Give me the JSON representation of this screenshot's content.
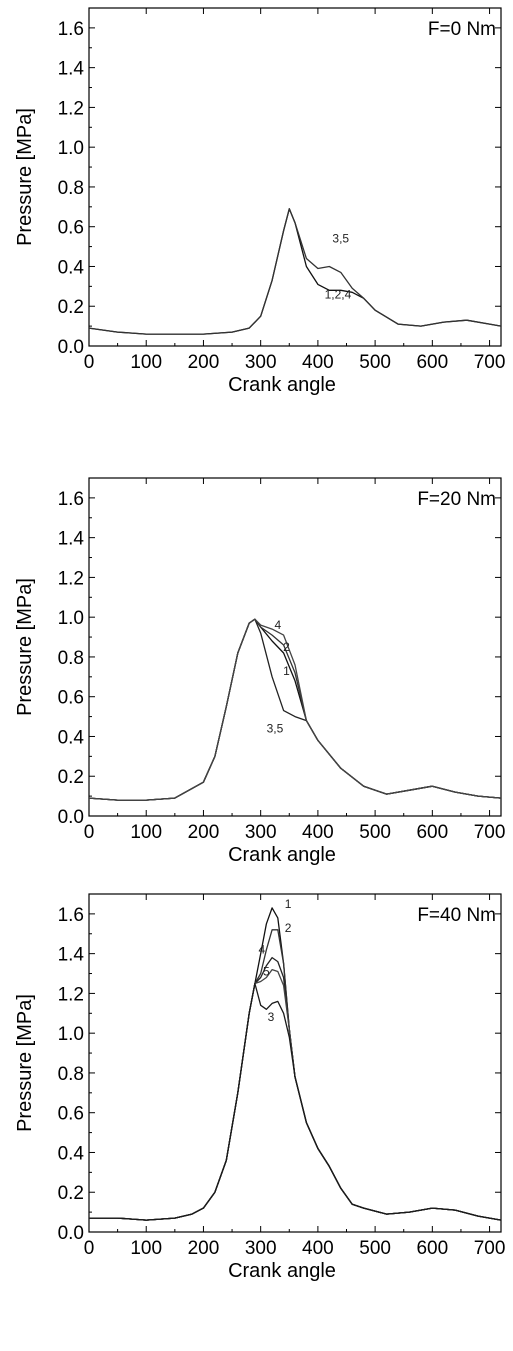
{
  "chart_data": [
    {
      "type": "line",
      "title": "F=0 Nm",
      "xlabel": "Crank angle",
      "ylabel": "Pressure [MPa]",
      "xlim": [
        0,
        720
      ],
      "ylim": [
        0.0,
        1.7
      ],
      "xticks": [
        "0",
        "100",
        "200",
        "300",
        "400",
        "500",
        "600",
        "700"
      ],
      "yticks": [
        "0.0",
        "0.2",
        "0.4",
        "0.6",
        "0.8",
        "1.0",
        "1.2",
        "1.4",
        "1.6"
      ],
      "grid": false,
      "series": [
        {
          "name": "1,2,4",
          "x": [
            0,
            50,
            100,
            150,
            200,
            250,
            280,
            300,
            320,
            340,
            350,
            360,
            380,
            400,
            420,
            440,
            460,
            480,
            500,
            540,
            580,
            620,
            660,
            700,
            720
          ],
          "y": [
            0.09,
            0.07,
            0.06,
            0.06,
            0.06,
            0.07,
            0.09,
            0.15,
            0.33,
            0.58,
            0.69,
            0.62,
            0.4,
            0.31,
            0.28,
            0.28,
            0.27,
            0.24,
            0.18,
            0.11,
            0.1,
            0.12,
            0.13,
            0.11,
            0.1
          ]
        },
        {
          "name": "3,5",
          "x": [
            0,
            50,
            100,
            150,
            200,
            250,
            280,
            300,
            320,
            340,
            350,
            360,
            380,
            400,
            420,
            440,
            460,
            480,
            500,
            540,
            580,
            620,
            660,
            700,
            720
          ],
          "y": [
            0.09,
            0.07,
            0.06,
            0.06,
            0.06,
            0.07,
            0.09,
            0.15,
            0.33,
            0.58,
            0.69,
            0.62,
            0.44,
            0.39,
            0.4,
            0.37,
            0.29,
            0.24,
            0.18,
            0.11,
            0.1,
            0.12,
            0.13,
            0.11,
            0.1
          ]
        }
      ],
      "annotations": [
        {
          "text": "3,5",
          "x": 440,
          "y": 0.52
        },
        {
          "text": "1,2,4",
          "x": 435,
          "y": 0.24
        }
      ]
    },
    {
      "type": "line",
      "title": "F=20 Nm",
      "xlabel": "Crank angle",
      "ylabel": "Pressure [MPa]",
      "xlim": [
        0,
        720
      ],
      "ylim": [
        0.0,
        1.7
      ],
      "xticks": [
        "0",
        "100",
        "200",
        "300",
        "400",
        "500",
        "600",
        "700"
      ],
      "yticks": [
        "0.0",
        "0.2",
        "0.4",
        "0.6",
        "0.8",
        "1.0",
        "1.2",
        "1.4",
        "1.6"
      ],
      "grid": false,
      "series": [
        {
          "name": "1",
          "x": [
            0,
            50,
            100,
            150,
            200,
            220,
            240,
            260,
            280,
            290,
            300,
            320,
            340,
            360,
            380,
            400,
            440,
            480,
            520,
            560,
            600,
            640,
            680,
            720
          ],
          "y": [
            0.09,
            0.08,
            0.08,
            0.09,
            0.17,
            0.3,
            0.55,
            0.82,
            0.97,
            0.99,
            0.95,
            0.88,
            0.82,
            0.68,
            0.48,
            0.38,
            0.24,
            0.15,
            0.11,
            0.13,
            0.15,
            0.12,
            0.1,
            0.09
          ]
        },
        {
          "name": "2",
          "x": [
            0,
            50,
            100,
            150,
            200,
            220,
            240,
            260,
            280,
            290,
            300,
            320,
            340,
            360,
            380,
            400,
            440,
            480,
            520,
            560,
            600,
            640,
            680,
            720
          ],
          "y": [
            0.09,
            0.08,
            0.08,
            0.09,
            0.17,
            0.3,
            0.55,
            0.82,
            0.97,
            0.99,
            0.95,
            0.91,
            0.86,
            0.72,
            0.48,
            0.38,
            0.24,
            0.15,
            0.11,
            0.13,
            0.15,
            0.12,
            0.1,
            0.09
          ]
        },
        {
          "name": "3,5",
          "x": [
            0,
            50,
            100,
            150,
            200,
            220,
            240,
            260,
            280,
            290,
            300,
            320,
            340,
            360,
            380,
            400,
            440,
            480,
            520,
            560,
            600,
            640,
            680,
            720
          ],
          "y": [
            0.09,
            0.08,
            0.08,
            0.09,
            0.17,
            0.3,
            0.55,
            0.82,
            0.97,
            0.99,
            0.92,
            0.7,
            0.53,
            0.5,
            0.48,
            0.38,
            0.24,
            0.15,
            0.11,
            0.13,
            0.15,
            0.12,
            0.1,
            0.09
          ]
        },
        {
          "name": "4",
          "x": [
            0,
            50,
            100,
            150,
            200,
            220,
            240,
            260,
            280,
            290,
            300,
            320,
            340,
            360,
            380,
            400,
            440,
            480,
            520,
            560,
            600,
            640,
            680,
            720
          ],
          "y": [
            0.09,
            0.08,
            0.08,
            0.09,
            0.17,
            0.3,
            0.55,
            0.82,
            0.97,
            0.99,
            0.96,
            0.94,
            0.91,
            0.76,
            0.48,
            0.38,
            0.24,
            0.15,
            0.11,
            0.13,
            0.15,
            0.12,
            0.1,
            0.09
          ]
        }
      ],
      "annotations": [
        {
          "text": "4",
          "x": 330,
          "y": 0.94
        },
        {
          "text": "2",
          "x": 345,
          "y": 0.83
        },
        {
          "text": "1",
          "x": 345,
          "y": 0.71
        },
        {
          "text": "3,5",
          "x": 325,
          "y": 0.42
        }
      ]
    },
    {
      "type": "line",
      "title": "F=40 Nm",
      "xlabel": "Crank angle",
      "ylabel": "Pressure [MPa]",
      "xlim": [
        0,
        720
      ],
      "ylim": [
        0.0,
        1.7
      ],
      "xticks": [
        "0",
        "100",
        "200",
        "300",
        "400",
        "500",
        "600",
        "700"
      ],
      "yticks": [
        "0.0",
        "0.2",
        "0.4",
        "0.6",
        "0.8",
        "1.0",
        "1.2",
        "1.4",
        "1.6"
      ],
      "grid": false,
      "series": [
        {
          "name": "1",
          "x": [
            0,
            50,
            100,
            150,
            180,
            200,
            220,
            240,
            260,
            280,
            290,
            300,
            310,
            320,
            330,
            340,
            350,
            360,
            380,
            400,
            420,
            440,
            460,
            480,
            520,
            560,
            600,
            640,
            680,
            720
          ],
          "y": [
            0.07,
            0.07,
            0.06,
            0.07,
            0.09,
            0.12,
            0.2,
            0.36,
            0.7,
            1.1,
            1.25,
            1.4,
            1.55,
            1.63,
            1.58,
            1.35,
            1.02,
            0.78,
            0.55,
            0.42,
            0.33,
            0.22,
            0.14,
            0.12,
            0.09,
            0.1,
            0.12,
            0.11,
            0.08,
            0.06
          ]
        },
        {
          "name": "2",
          "x": [
            0,
            50,
            100,
            150,
            180,
            200,
            220,
            240,
            260,
            280,
            290,
            300,
            310,
            320,
            330,
            340,
            350,
            360,
            380,
            400,
            420,
            440,
            460,
            480,
            520,
            560,
            600,
            640,
            680,
            720
          ],
          "y": [
            0.07,
            0.07,
            0.06,
            0.07,
            0.09,
            0.12,
            0.2,
            0.36,
            0.7,
            1.1,
            1.25,
            1.3,
            1.42,
            1.52,
            1.52,
            1.35,
            1.02,
            0.78,
            0.55,
            0.42,
            0.33,
            0.22,
            0.14,
            0.12,
            0.09,
            0.1,
            0.12,
            0.11,
            0.08,
            0.06
          ]
        },
        {
          "name": "4",
          "x": [
            0,
            50,
            100,
            150,
            180,
            200,
            220,
            240,
            260,
            280,
            290,
            300,
            310,
            320,
            330,
            340,
            350,
            360,
            380,
            400,
            420,
            440,
            460,
            480,
            520,
            560,
            600,
            640,
            680,
            720
          ],
          "y": [
            0.07,
            0.07,
            0.06,
            0.07,
            0.09,
            0.12,
            0.2,
            0.36,
            0.7,
            1.1,
            1.25,
            1.28,
            1.34,
            1.38,
            1.36,
            1.28,
            1.02,
            0.78,
            0.55,
            0.42,
            0.33,
            0.22,
            0.14,
            0.12,
            0.09,
            0.1,
            0.12,
            0.11,
            0.08,
            0.06
          ]
        },
        {
          "name": "5",
          "x": [
            0,
            50,
            100,
            150,
            180,
            200,
            220,
            240,
            260,
            280,
            290,
            300,
            310,
            320,
            330,
            340,
            350,
            360,
            380,
            400,
            420,
            440,
            460,
            480,
            520,
            560,
            600,
            640,
            680,
            720
          ],
          "y": [
            0.07,
            0.07,
            0.06,
            0.07,
            0.09,
            0.12,
            0.2,
            0.36,
            0.7,
            1.1,
            1.25,
            1.26,
            1.28,
            1.32,
            1.31,
            1.24,
            1.02,
            0.78,
            0.55,
            0.42,
            0.33,
            0.22,
            0.14,
            0.12,
            0.09,
            0.1,
            0.12,
            0.11,
            0.08,
            0.06
          ]
        },
        {
          "name": "3",
          "x": [
            0,
            50,
            100,
            150,
            180,
            200,
            220,
            240,
            260,
            280,
            290,
            300,
            310,
            320,
            330,
            340,
            350,
            360,
            380,
            400,
            420,
            440,
            460,
            480,
            520,
            560,
            600,
            640,
            680,
            720
          ],
          "y": [
            0.07,
            0.07,
            0.06,
            0.07,
            0.09,
            0.12,
            0.2,
            0.36,
            0.7,
            1.1,
            1.25,
            1.14,
            1.12,
            1.15,
            1.16,
            1.1,
            0.98,
            0.78,
            0.55,
            0.42,
            0.33,
            0.22,
            0.14,
            0.12,
            0.09,
            0.1,
            0.12,
            0.11,
            0.08,
            0.06
          ]
        }
      ],
      "annotations": [
        {
          "text": "1",
          "x": 348,
          "y": 1.63
        },
        {
          "text": "2",
          "x": 348,
          "y": 1.51
        },
        {
          "text": "4",
          "x": 302,
          "y": 1.4
        },
        {
          "text": "5",
          "x": 310,
          "y": 1.29
        },
        {
          "text": "3",
          "x": 318,
          "y": 1.06
        }
      ]
    }
  ]
}
